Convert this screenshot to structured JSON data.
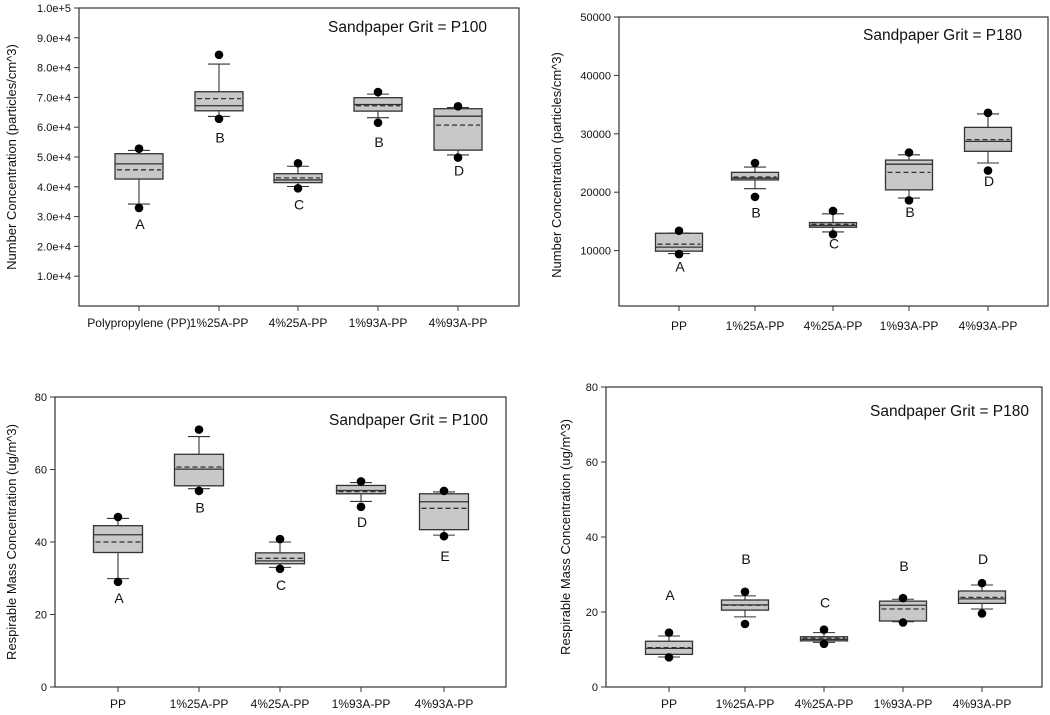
{
  "chart_data": [
    {
      "type": "box",
      "panel": "top-left",
      "title": "Sandpaper Grit = P100",
      "xlabel": "",
      "ylabel": "Number Concentration (particles/cm^3)",
      "ylim": [
        0,
        100000
      ],
      "yticks": [
        10000,
        20000,
        30000,
        40000,
        50000,
        60000,
        70000,
        80000,
        90000,
        100000
      ],
      "ytick_labels": [
        "1.0e+4",
        "2.0e+4",
        "3.0e+4",
        "4.0e+4",
        "5.0e+4",
        "6.0e+4",
        "7.0e+4",
        "8.0e+4",
        "9.0e+4",
        "1.0e+5"
      ],
      "categories": [
        "Polypropylene (PP)",
        "1%25A-PP",
        "4%25A-PP",
        "1%93A-PP",
        "4%93A-PP"
      ],
      "boxes": [
        {
          "whisker_low": 34200,
          "q1": 42600,
          "median": 47700,
          "mean": 45700,
          "q3": 51100,
          "whisker_high": 52200,
          "outliers": [
            32900,
            52800
          ],
          "letter": "A",
          "letter_y": 27500
        },
        {
          "whisker_low": 63600,
          "q1": 65500,
          "median": 67200,
          "mean": 69600,
          "q3": 71900,
          "whisker_high": 81200,
          "outliers": [
            62800,
            84300
          ],
          "letter": "B",
          "letter_y": 56500
        },
        {
          "whisker_low": 40100,
          "q1": 41400,
          "median": 42300,
          "mean": 43000,
          "q3": 44400,
          "whisker_high": 46900,
          "outliers": [
            39500,
            47900
          ],
          "letter": "C",
          "letter_y": 34000
        },
        {
          "whisker_low": 63200,
          "q1": 65400,
          "median": 67600,
          "mean": 67200,
          "q3": 69900,
          "whisker_high": 71100,
          "outliers": [
            61500,
            71800
          ],
          "letter": "B",
          "letter_y": 55000
        },
        {
          "whisker_low": 50700,
          "q1": 52300,
          "median": 63700,
          "mean": 60700,
          "q3": 66200,
          "whisker_high": 66600,
          "outliers": [
            49800,
            67000
          ],
          "letter": "D",
          "letter_y": 45500
        }
      ]
    },
    {
      "type": "box",
      "panel": "top-right",
      "title": "Sandpaper Grit = P180",
      "xlabel": "",
      "ylabel": "Number Concentration (particles/cm^3)",
      "ylim": [
        0,
        50000
      ],
      "yticks": [
        10000,
        20000,
        30000,
        40000,
        50000
      ],
      "ytick_labels": [
        "10000",
        "20000",
        "30000",
        "40000",
        "50000"
      ],
      "categories": [
        "PP",
        "1%25A-PP",
        "4%25A-PP",
        "1%93A-PP",
        "4%93A-PP"
      ],
      "boxes": [
        {
          "whisker_low": 9500,
          "q1": 9900,
          "median": 10600,
          "mean": 11100,
          "q3": 12970,
          "whisker_high": 13000,
          "outliers": [
            9400,
            13400
          ],
          "letter": "A",
          "letter_y": 7300
        },
        {
          "whisker_low": 20600,
          "q1": 22100,
          "median": 22400,
          "mean": 22600,
          "q3": 23400,
          "whisker_high": 24300,
          "outliers": [
            19200,
            25000
          ],
          "letter": "B",
          "letter_y": 16500
        },
        {
          "whisker_low": 13200,
          "q1": 14000,
          "median": 14300,
          "mean": 14500,
          "q3": 14800,
          "whisker_high": 16300,
          "outliers": [
            12800,
            16800
          ],
          "letter": "C",
          "letter_y": 11200
        },
        {
          "whisker_low": 19000,
          "q1": 20400,
          "median": 24800,
          "mean": 23400,
          "q3": 25500,
          "whisker_high": 26400,
          "outliers": [
            18600,
            26800
          ],
          "letter": "B",
          "letter_y": 16600
        },
        {
          "whisker_low": 25000,
          "q1": 27000,
          "median": 28700,
          "mean": 29000,
          "q3": 31100,
          "whisker_high": 33400,
          "outliers": [
            23700,
            33600
          ],
          "letter": "D",
          "letter_y": 21900
        }
      ]
    },
    {
      "type": "box",
      "panel": "bottom-left",
      "title": "Sandpaper Grit = P100",
      "xlabel": "",
      "ylabel": "Respirable Mass Concentration (ug/m^3)",
      "ylim": [
        0,
        80
      ],
      "yticks": [
        0,
        20,
        40,
        60,
        80
      ],
      "ytick_labels": [
        "0",
        "20",
        "40",
        "60",
        "80"
      ],
      "categories": [
        "PP",
        "1%25A-PP",
        "4%25A-PP",
        "1%93A-PP",
        "4%93A-PP"
      ],
      "boxes": [
        {
          "whisker_low": 29.9,
          "q1": 37.1,
          "median": 42.0,
          "mean": 40.0,
          "q3": 44.5,
          "whisker_high": 46.5,
          "outliers": [
            29.0,
            46.9
          ],
          "letter": "A",
          "letter_y": 24.5
        },
        {
          "whisker_low": 54.7,
          "q1": 55.5,
          "median": 60.1,
          "mean": 60.7,
          "q3": 64.2,
          "whisker_high": 69.1,
          "outliers": [
            54.1,
            71.0
          ],
          "letter": "B",
          "letter_y": 49.5
        },
        {
          "whisker_low": 33.0,
          "q1": 34.0,
          "median": 34.8,
          "mean": 35.5,
          "q3": 37.0,
          "whisker_high": 40.0,
          "outliers": [
            32.6,
            40.8
          ],
          "letter": "C",
          "letter_y": 28.2
        },
        {
          "whisker_low": 51.2,
          "q1": 53.3,
          "median": 54.2,
          "mean": 53.9,
          "q3": 55.6,
          "whisker_high": 56.4,
          "outliers": [
            49.7,
            56.7
          ],
          "letter": "D",
          "letter_y": 45.5
        },
        {
          "whisker_low": 41.9,
          "q1": 43.4,
          "median": 51.1,
          "mean": 49.3,
          "q3": 53.3,
          "whisker_high": 53.8,
          "outliers": [
            41.6,
            54.1
          ],
          "letter": "E",
          "letter_y": 36.2
        }
      ]
    },
    {
      "type": "box",
      "panel": "bottom-right",
      "title": "Sandpaper Grit = P180",
      "xlabel": "",
      "ylabel": "Respirable Mass Concentration (ug/m^3)",
      "ylim": [
        0,
        80
      ],
      "yticks": [
        0,
        20,
        40,
        60,
        80
      ],
      "ytick_labels": [
        "0",
        "20",
        "40",
        "60",
        "80"
      ],
      "categories": [
        "PP",
        "1%25A-PP",
        "4%25A-PP",
        "1%93A-PP",
        "4%93A-PP"
      ],
      "boxes": [
        {
          "whisker_low": 8.0,
          "q1": 8.7,
          "median": 10.3,
          "mean": 10.5,
          "q3": 12.2,
          "whisker_high": 13.6,
          "outliers": [
            7.9,
            14.5
          ],
          "letter": "A",
          "letter_y": 24.5
        },
        {
          "whisker_low": 18.7,
          "q1": 20.5,
          "median": 21.9,
          "mean": 21.8,
          "q3": 23.2,
          "whisker_high": 24.3,
          "outliers": [
            16.8,
            25.4
          ],
          "letter": "B",
          "letter_y": 34.2
        },
        {
          "whisker_low": 11.9,
          "q1": 12.3,
          "median": 12.7,
          "mean": 13.0,
          "q3": 13.4,
          "whisker_high": 14.5,
          "outliers": [
            11.5,
            15.3
          ],
          "letter": "C",
          "letter_y": 22.6
        },
        {
          "whisker_low": 17.4,
          "q1": 17.6,
          "median": 21.8,
          "mean": 20.8,
          "q3": 22.9,
          "whisker_high": 23.4,
          "outliers": [
            17.2,
            23.7
          ],
          "letter": "B",
          "letter_y": 32.3
        },
        {
          "whisker_low": 20.8,
          "q1": 22.3,
          "median": 23.5,
          "mean": 23.9,
          "q3": 25.6,
          "whisker_high": 27.2,
          "outliers": [
            19.6,
            27.7
          ],
          "letter": "D",
          "letter_y": 34.1
        }
      ]
    }
  ]
}
